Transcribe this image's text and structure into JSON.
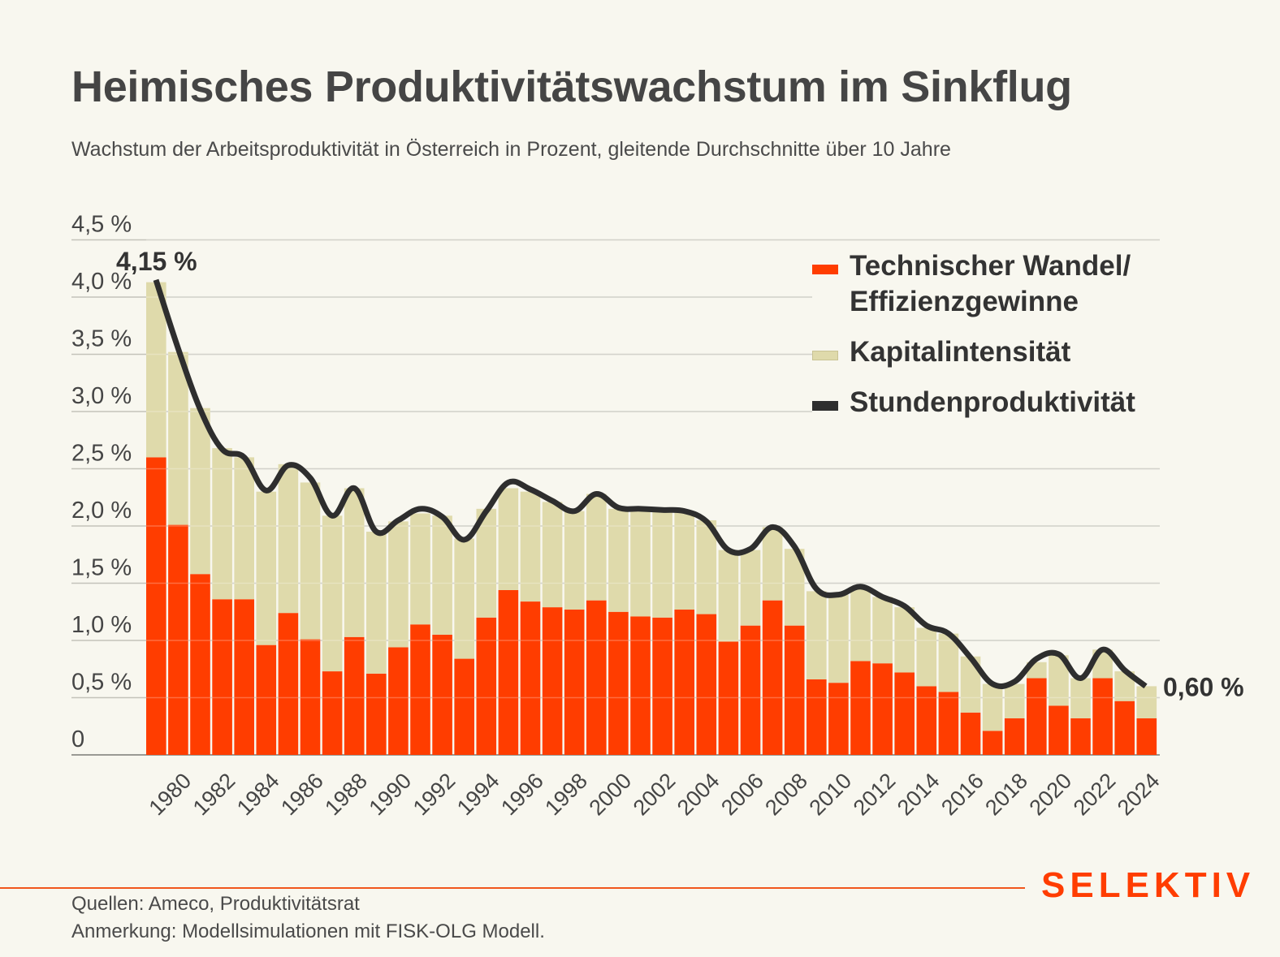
{
  "header": {
    "title": "Heimisches Produktivitätswachstum im Sinkflug",
    "subtitle": "Wachstum der Arbeitsproduktivität in Österreich in Prozent, gleitende Durchschnitte über 10 Jahre"
  },
  "footer": {
    "sources": "Quellen: Ameco, Produktivitätsrat",
    "note": "Anmerkung: Modellsimulationen mit FISK-OLG Modell.",
    "logo": "SELEKTIV"
  },
  "colors": {
    "technischer_wandel": "#FF3D00",
    "kapitalintensitaet": "#DFDAAB",
    "stundenproduktivitaet": "#2E2E2E",
    "brand": "#FF3D00",
    "background": "#F8F7EF"
  },
  "chart_data": {
    "type": "bar",
    "stacked": true,
    "title": "Heimisches Produktivitätswachstum im Sinkflug",
    "subtitle": "Wachstum der Arbeitsproduktivität in Österreich in Prozent, gleitende Durchschnitte über 10 Jahre",
    "xlabel": "",
    "ylabel": "",
    "ylim": [
      0,
      4.5
    ],
    "grid": true,
    "legend_position": "top-right",
    "y_ticks": [
      {
        "value": 0,
        "label": "0"
      },
      {
        "value": 0.5,
        "label": "0,5 %"
      },
      {
        "value": 1.0,
        "label": "1,0 %"
      },
      {
        "value": 1.5,
        "label": "1,5 %"
      },
      {
        "value": 2.0,
        "label": "2,0 %"
      },
      {
        "value": 2.5,
        "label": "2,5 %"
      },
      {
        "value": 3.0,
        "label": "3,0 %"
      },
      {
        "value": 3.5,
        "label": "3,5 %"
      },
      {
        "value": 4.0,
        "label": "4,0 %"
      },
      {
        "value": 4.5,
        "label": "4,5 %"
      }
    ],
    "categories": [
      1979,
      1980,
      1981,
      1982,
      1983,
      1984,
      1985,
      1986,
      1987,
      1988,
      1989,
      1990,
      1991,
      1992,
      1993,
      1994,
      1995,
      1996,
      1997,
      1998,
      1999,
      2000,
      2001,
      2002,
      2003,
      2004,
      2005,
      2006,
      2007,
      2008,
      2009,
      2010,
      2011,
      2012,
      2013,
      2014,
      2015,
      2016,
      2017,
      2018,
      2019,
      2020,
      2021,
      2022,
      2023,
      2024
    ],
    "x_tick_labels": [
      "1980",
      "1982",
      "1984",
      "1986",
      "1988",
      "1990",
      "1992",
      "1994",
      "1996",
      "1998",
      "2000",
      "2002",
      "2004",
      "2006",
      "2008",
      "2010",
      "2012",
      "2014",
      "2016",
      "2018",
      "2020",
      "2022",
      "2024"
    ],
    "series": [
      {
        "name": "Technischer Wandel/ Effizienzgewinne",
        "kind": "bar",
        "values": [
          2.6,
          2.01,
          1.58,
          1.36,
          1.36,
          0.96,
          1.24,
          1.01,
          0.73,
          1.03,
          0.71,
          0.94,
          1.14,
          1.05,
          0.84,
          1.2,
          1.44,
          1.34,
          1.29,
          1.27,
          1.35,
          1.25,
          1.21,
          1.2,
          1.27,
          1.23,
          0.99,
          1.13,
          1.35,
          1.13,
          0.66,
          0.63,
          0.82,
          0.8,
          0.72,
          0.6,
          0.55,
          0.37,
          0.21,
          0.32,
          0.67,
          0.43,
          0.32,
          0.67,
          0.47,
          0.32
        ]
      },
      {
        "name": "Kapitalintensität",
        "kind": "bar",
        "values": [
          1.53,
          1.51,
          1.45,
          1.32,
          1.24,
          1.34,
          1.3,
          1.37,
          1.36,
          1.3,
          1.24,
          1.1,
          0.97,
          1.04,
          1.05,
          0.95,
          0.89,
          0.96,
          0.92,
          0.86,
          0.93,
          0.9,
          0.92,
          0.93,
          0.85,
          0.82,
          0.8,
          0.66,
          0.64,
          0.67,
          0.77,
          0.77,
          0.65,
          0.58,
          0.57,
          0.51,
          0.51,
          0.49,
          0.41,
          0.3,
          0.14,
          0.44,
          0.35,
          0.25,
          0.26,
          0.28
        ]
      },
      {
        "name": "Stundenproduktivität",
        "kind": "line",
        "values": [
          4.15,
          3.55,
          3.02,
          2.67,
          2.6,
          2.31,
          2.53,
          2.42,
          2.09,
          2.33,
          1.95,
          2.05,
          2.15,
          2.08,
          1.88,
          2.13,
          2.38,
          2.32,
          2.22,
          2.13,
          2.28,
          2.16,
          2.15,
          2.14,
          2.13,
          2.04,
          1.79,
          1.8,
          1.99,
          1.82,
          1.45,
          1.4,
          1.47,
          1.38,
          1.3,
          1.13,
          1.06,
          0.85,
          0.62,
          0.64,
          0.84,
          0.88,
          0.67,
          0.92,
          0.74,
          0.6
        ]
      }
    ],
    "annotations": [
      {
        "text": "4,15 %",
        "x": 1979,
        "y": 4.15
      },
      {
        "text": "0,60 %",
        "x": 2024,
        "y": 0.6
      }
    ]
  },
  "legend": [
    {
      "label": "Technischer Wandel/",
      "label2": "Effizienzgewinne",
      "swatch": "bar-red"
    },
    {
      "label": "Kapitalintensität",
      "swatch": "bar-beige"
    },
    {
      "label": "Stundenproduktivität",
      "swatch": "line-dark"
    }
  ]
}
